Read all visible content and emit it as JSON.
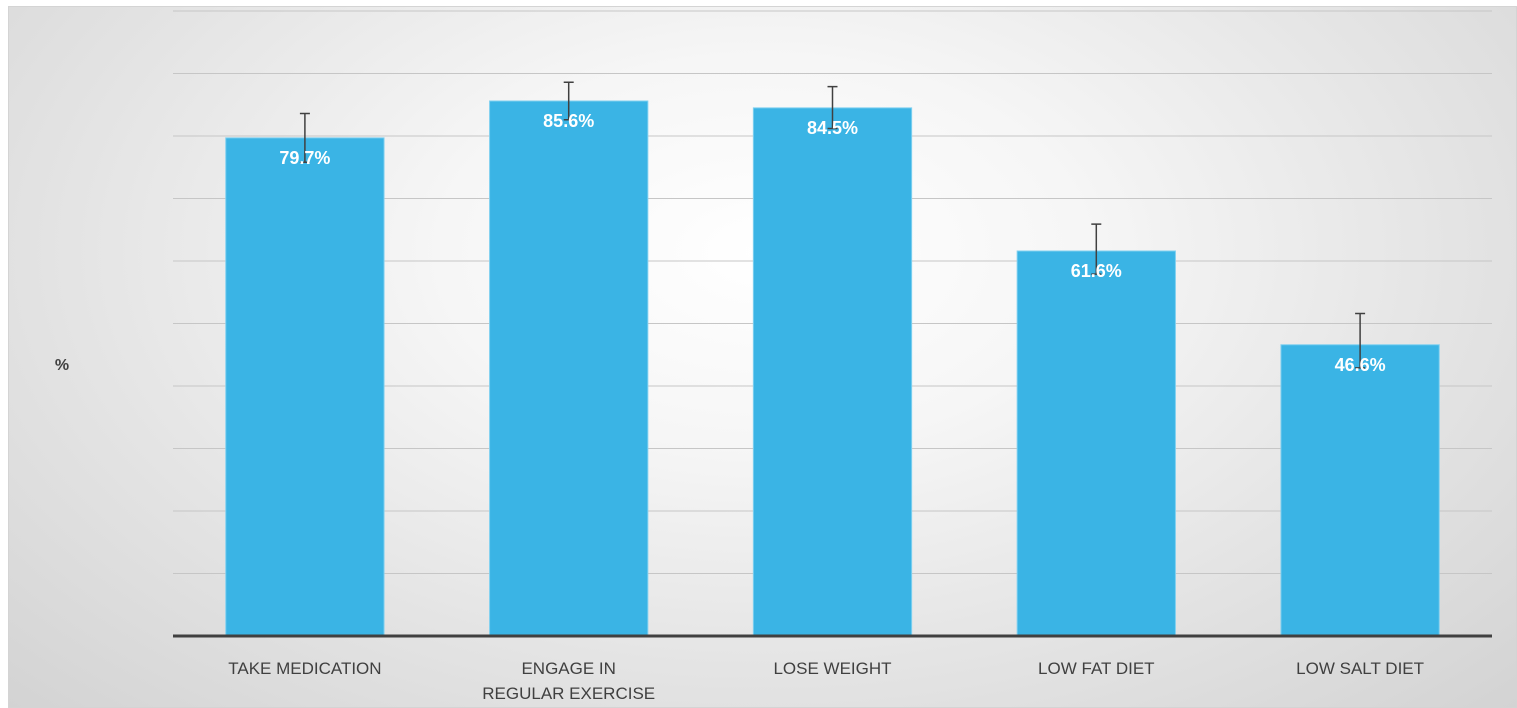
{
  "chart_data": {
    "type": "bar",
    "ylabel": "%",
    "xlabel": "",
    "ylim": [
      0,
      100
    ],
    "gridlines": true,
    "y_tick_labels_visible": false,
    "categories": [
      [
        "TAKE MEDICATION"
      ],
      [
        "ENGAGE IN",
        "REGULAR EXERCISE"
      ],
      [
        "LOSE WEIGHT"
      ],
      [
        "LOW FAT DIET"
      ],
      [
        "LOW SALT DIET"
      ]
    ],
    "values": [
      79.7,
      85.6,
      84.5,
      61.6,
      46.6
    ],
    "data_labels": [
      "79.7%",
      "85.6%",
      "84.5%",
      "61.6%",
      "46.6%"
    ],
    "error_bars": [
      {
        "low": 75.8,
        "high": 83.6
      },
      {
        "low": 82.6,
        "high": 88.6
      },
      {
        "low": 81.2,
        "high": 87.9
      },
      {
        "low": 57.9,
        "high": 65.9
      },
      {
        "low": 42.9,
        "high": 51.6
      }
    ],
    "colors": {
      "bar": "#3ab4e5",
      "bar_edge": "#7fd0f0",
      "gridline": "#c6c6c6",
      "axis": "#404040",
      "error_bar": "#404040"
    }
  }
}
